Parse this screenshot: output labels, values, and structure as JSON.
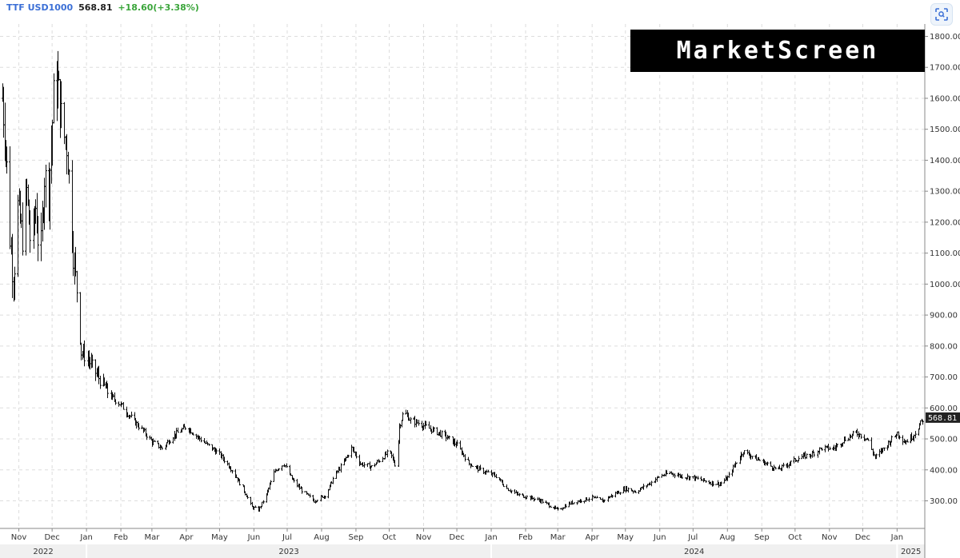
{
  "header": {
    "symbol": "TTF USD1000",
    "price": "568.81",
    "change": "+18.60(+3.38%)"
  },
  "watermark": "MarketScreen",
  "expand_icon": "expand-icon",
  "colors": {
    "symbol": "#3b6fd6",
    "change_positive": "#3aa53a",
    "bars": "#111111",
    "grid": "#dddddd",
    "logo_bg": "#000000",
    "price_badge_bg": "#222222"
  },
  "chart_data": {
    "type": "ohlc",
    "title": "",
    "xlabel": "",
    "ylabel": "",
    "grid": true,
    "y_axis_side": "right",
    "ylim": [
      240,
      1810
    ],
    "xlim": [
      "2022-10-15",
      "2025-01-26"
    ],
    "y_ticks": [
      "1800.00",
      "1700.00",
      "1600.00",
      "1500.00",
      "1400.00",
      "1300.00",
      "1200.00",
      "1100.00",
      "1000.00",
      "900.00",
      "800.00",
      "700.00",
      "600.00",
      "500.00",
      "400.00",
      "300.00"
    ],
    "last_price_label": "568.81",
    "last_price": 568.81,
    "month_ticks": [
      {
        "label": "Nov",
        "date": "2022-11-01"
      },
      {
        "label": "Dec",
        "date": "2022-12-01"
      },
      {
        "label": "Jan",
        "date": "2023-01-01"
      },
      {
        "label": "Feb",
        "date": "2023-02-01"
      },
      {
        "label": "Mar",
        "date": "2023-03-01"
      },
      {
        "label": "Apr",
        "date": "2023-04-01"
      },
      {
        "label": "May",
        "date": "2023-05-01"
      },
      {
        "label": "Jun",
        "date": "2023-06-01"
      },
      {
        "label": "Jul",
        "date": "2023-07-01"
      },
      {
        "label": "Aug",
        "date": "2023-08-01"
      },
      {
        "label": "Sep",
        "date": "2023-09-01"
      },
      {
        "label": "Oct",
        "date": "2023-10-01"
      },
      {
        "label": "Nov",
        "date": "2023-11-01"
      },
      {
        "label": "Dec",
        "date": "2023-12-01"
      },
      {
        "label": "Jan",
        "date": "2024-01-01"
      },
      {
        "label": "Feb",
        "date": "2024-02-01"
      },
      {
        "label": "Mar",
        "date": "2024-03-01"
      },
      {
        "label": "Apr",
        "date": "2024-04-01"
      },
      {
        "label": "May",
        "date": "2024-05-01"
      },
      {
        "label": "Jun",
        "date": "2024-06-01"
      },
      {
        "label": "Jul",
        "date": "2024-07-01"
      },
      {
        "label": "Aug",
        "date": "2024-08-01"
      },
      {
        "label": "Sep",
        "date": "2024-09-01"
      },
      {
        "label": "Oct",
        "date": "2024-10-01"
      },
      {
        "label": "Nov",
        "date": "2024-11-01"
      },
      {
        "label": "Dec",
        "date": "2024-12-01"
      },
      {
        "label": "Jan",
        "date": "2025-01-01"
      }
    ],
    "year_labels": [
      {
        "label": "2022",
        "start": "2022-10-15",
        "end": "2023-01-01"
      },
      {
        "label": "2023",
        "start": "2023-01-01",
        "end": "2024-01-01"
      },
      {
        "label": "2024",
        "start": "2024-01-01",
        "end": "2025-01-01"
      },
      {
        "label": "2025",
        "start": "2025-01-01",
        "end": "2025-01-26"
      }
    ],
    "close_path": [
      {
        "date": "2022-10-17",
        "value": 1600
      },
      {
        "date": "2022-10-20",
        "value": 1450
      },
      {
        "date": "2022-10-24",
        "value": 1150
      },
      {
        "date": "2022-10-27",
        "value": 1000
      },
      {
        "date": "2022-10-31",
        "value": 1250
      },
      {
        "date": "2022-11-04",
        "value": 1150
      },
      {
        "date": "2022-11-08",
        "value": 1300
      },
      {
        "date": "2022-11-12",
        "value": 1100
      },
      {
        "date": "2022-11-16",
        "value": 1250
      },
      {
        "date": "2022-11-20",
        "value": 1050
      },
      {
        "date": "2022-11-24",
        "value": 1350
      },
      {
        "date": "2022-11-28",
        "value": 1300
      },
      {
        "date": "2022-12-02",
        "value": 1600
      },
      {
        "date": "2022-12-06",
        "value": 1650
      },
      {
        "date": "2022-12-10",
        "value": 1500
      },
      {
        "date": "2022-12-14",
        "value": 1450
      },
      {
        "date": "2022-12-17",
        "value": 1300
      },
      {
        "date": "2022-12-20",
        "value": 1100
      },
      {
        "date": "2022-12-23",
        "value": 980
      },
      {
        "date": "2022-12-27",
        "value": 780
      },
      {
        "date": "2023-01-02",
        "value": 760
      },
      {
        "date": "2023-01-08",
        "value": 720
      },
      {
        "date": "2023-01-15",
        "value": 680
      },
      {
        "date": "2023-01-22",
        "value": 640
      },
      {
        "date": "2023-02-01",
        "value": 610
      },
      {
        "date": "2023-02-12",
        "value": 560
      },
      {
        "date": "2023-02-20",
        "value": 530
      },
      {
        "date": "2023-03-01",
        "value": 490
      },
      {
        "date": "2023-03-10",
        "value": 470
      },
      {
        "date": "2023-03-20",
        "value": 510
      },
      {
        "date": "2023-04-01",
        "value": 540
      },
      {
        "date": "2023-04-10",
        "value": 510
      },
      {
        "date": "2023-04-20",
        "value": 480
      },
      {
        "date": "2023-05-01",
        "value": 450
      },
      {
        "date": "2023-05-12",
        "value": 400
      },
      {
        "date": "2023-05-22",
        "value": 340
      },
      {
        "date": "2023-05-30",
        "value": 280
      },
      {
        "date": "2023-06-05",
        "value": 270
      },
      {
        "date": "2023-06-12",
        "value": 320
      },
      {
        "date": "2023-06-20",
        "value": 400
      },
      {
        "date": "2023-06-28",
        "value": 420
      },
      {
        "date": "2023-07-05",
        "value": 370
      },
      {
        "date": "2023-07-15",
        "value": 330
      },
      {
        "date": "2023-07-25",
        "value": 300
      },
      {
        "date": "2023-08-05",
        "value": 320
      },
      {
        "date": "2023-08-12",
        "value": 380
      },
      {
        "date": "2023-08-20",
        "value": 420
      },
      {
        "date": "2023-08-28",
        "value": 470
      },
      {
        "date": "2023-09-05",
        "value": 420
      },
      {
        "date": "2023-09-15",
        "value": 410
      },
      {
        "date": "2023-09-25",
        "value": 440
      },
      {
        "date": "2023-10-01",
        "value": 460
      },
      {
        "date": "2023-10-07",
        "value": 410
      },
      {
        "date": "2023-10-10",
        "value": 540
      },
      {
        "date": "2023-10-14",
        "value": 590
      },
      {
        "date": "2023-10-20",
        "value": 560
      },
      {
        "date": "2023-10-28",
        "value": 550
      },
      {
        "date": "2023-11-08",
        "value": 530
      },
      {
        "date": "2023-11-20",
        "value": 510
      },
      {
        "date": "2023-12-01",
        "value": 480
      },
      {
        "date": "2023-12-12",
        "value": 420
      },
      {
        "date": "2023-12-22",
        "value": 400
      },
      {
        "date": "2024-01-05",
        "value": 380
      },
      {
        "date": "2024-01-15",
        "value": 340
      },
      {
        "date": "2024-01-25",
        "value": 320
      },
      {
        "date": "2024-02-05",
        "value": 310
      },
      {
        "date": "2024-02-15",
        "value": 300
      },
      {
        "date": "2024-02-25",
        "value": 280
      },
      {
        "date": "2024-03-01",
        "value": 270
      },
      {
        "date": "2024-03-10",
        "value": 290
      },
      {
        "date": "2024-03-20",
        "value": 300
      },
      {
        "date": "2024-04-01",
        "value": 310
      },
      {
        "date": "2024-04-10",
        "value": 300
      },
      {
        "date": "2024-04-20",
        "value": 320
      },
      {
        "date": "2024-05-01",
        "value": 340
      },
      {
        "date": "2024-05-10",
        "value": 330
      },
      {
        "date": "2024-05-20",
        "value": 350
      },
      {
        "date": "2024-06-01",
        "value": 380
      },
      {
        "date": "2024-06-10",
        "value": 390
      },
      {
        "date": "2024-06-20",
        "value": 380
      },
      {
        "date": "2024-07-01",
        "value": 375
      },
      {
        "date": "2024-07-15",
        "value": 360
      },
      {
        "date": "2024-07-25",
        "value": 355
      },
      {
        "date": "2024-08-01",
        "value": 375
      },
      {
        "date": "2024-08-08",
        "value": 420
      },
      {
        "date": "2024-08-15",
        "value": 460
      },
      {
        "date": "2024-08-25",
        "value": 440
      },
      {
        "date": "2024-09-05",
        "value": 420
      },
      {
        "date": "2024-09-15",
        "value": 400
      },
      {
        "date": "2024-09-25",
        "value": 420
      },
      {
        "date": "2024-10-05",
        "value": 440
      },
      {
        "date": "2024-10-15",
        "value": 450
      },
      {
        "date": "2024-10-25",
        "value": 470
      },
      {
        "date": "2024-11-05",
        "value": 470
      },
      {
        "date": "2024-11-15",
        "value": 500
      },
      {
        "date": "2024-11-25",
        "value": 520
      },
      {
        "date": "2024-12-05",
        "value": 500
      },
      {
        "date": "2024-12-12",
        "value": 440
      },
      {
        "date": "2024-12-20",
        "value": 470
      },
      {
        "date": "2025-01-01",
        "value": 520
      },
      {
        "date": "2025-01-08",
        "value": 490
      },
      {
        "date": "2025-01-15",
        "value": 510
      },
      {
        "date": "2025-01-22",
        "value": 550
      },
      {
        "date": "2025-01-25",
        "value": 568.81
      }
    ]
  }
}
